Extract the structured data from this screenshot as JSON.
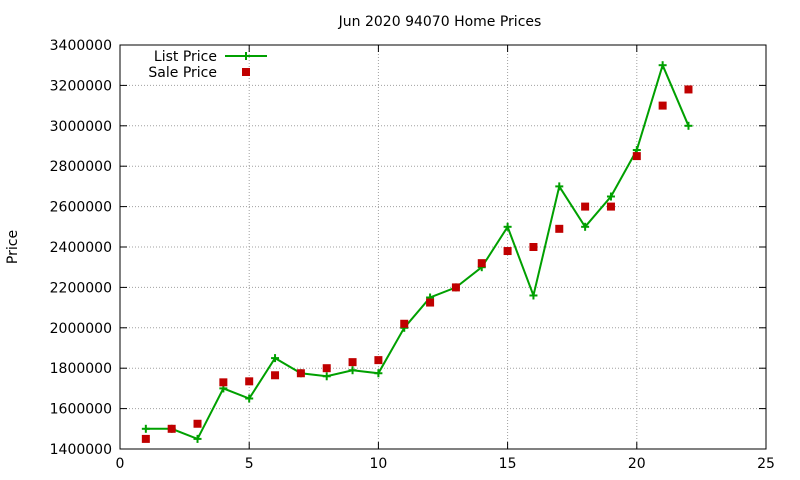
{
  "chart_data": {
    "type": "line",
    "title": "Jun 2020 94070 Home Prices",
    "xlabel": "",
    "ylabel": "Price",
    "xlim": [
      0,
      25
    ],
    "ylim": [
      1400000,
      3400000
    ],
    "x_ticks": [
      0,
      5,
      10,
      15,
      20,
      25
    ],
    "y_ticks": [
      1400000,
      1600000,
      1800000,
      2000000,
      2200000,
      2400000,
      2600000,
      2800000,
      3000000,
      3200000,
      3400000
    ],
    "grid": true,
    "legend_position": "top-left",
    "series": [
      {
        "name": "List Price",
        "style": "line-plus",
        "color": "#00a000",
        "x": [
          1,
          2,
          3,
          4,
          5,
          6,
          7,
          8,
          9,
          10,
          11,
          12,
          13,
          14,
          15,
          16,
          17,
          18,
          19,
          20,
          21,
          22
        ],
        "values": [
          1500000,
          1500000,
          1450000,
          1700000,
          1650000,
          1850000,
          1775000,
          1760000,
          1790000,
          1775000,
          2000000,
          2150000,
          2200000,
          2300000,
          2500000,
          2160000,
          2700000,
          2500000,
          2650000,
          2880000,
          3300000,
          3000000
        ]
      },
      {
        "name": "Sale Price",
        "style": "square-points",
        "color": "#c00000",
        "x": [
          1,
          2,
          3,
          4,
          5,
          6,
          7,
          8,
          9,
          10,
          11,
          12,
          13,
          14,
          15,
          16,
          17,
          18,
          19,
          20,
          21,
          22
        ],
        "values": [
          1450000,
          1500000,
          1525000,
          1730000,
          1735000,
          1765000,
          1775000,
          1800000,
          1830000,
          1840000,
          2020000,
          2125000,
          2200000,
          2320000,
          2380000,
          2400000,
          2490000,
          2600000,
          2600000,
          2850000,
          3100000,
          3180000
        ]
      }
    ]
  }
}
